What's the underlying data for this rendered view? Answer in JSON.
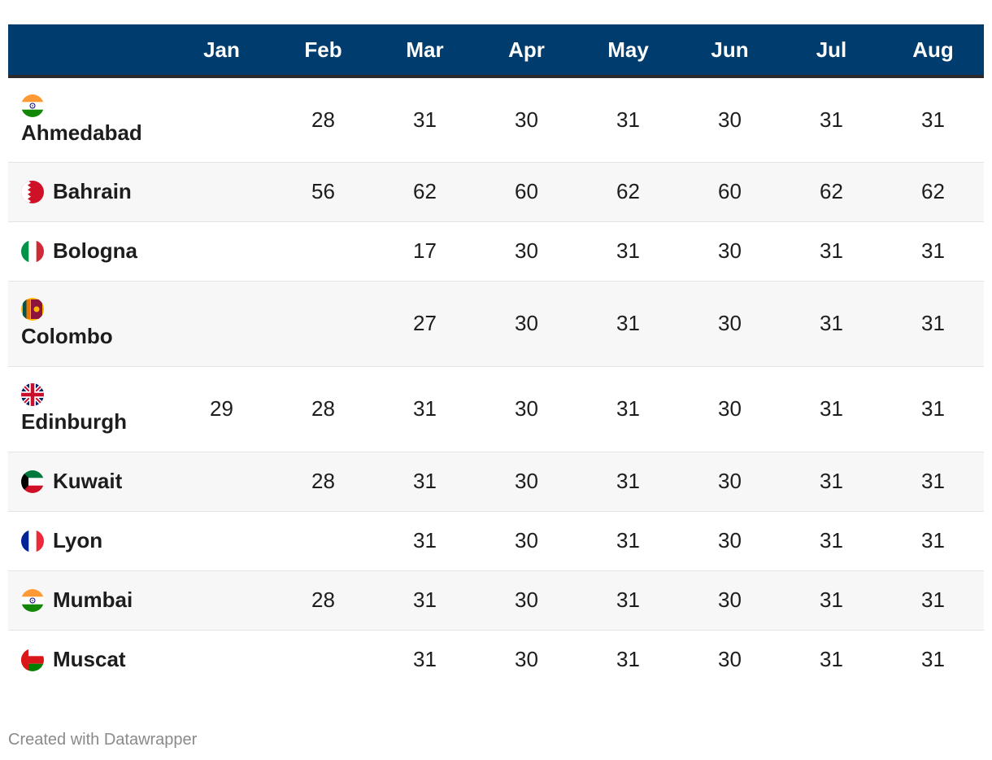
{
  "chart_data": {
    "type": "table",
    "columns": [
      "",
      "Jan",
      "Feb",
      "Mar",
      "Apr",
      "May",
      "Jun",
      "Jul",
      "Aug"
    ],
    "rows": [
      {
        "city": "Ahmedabad",
        "flag": "india-flag-icon",
        "values": [
          "",
          "28",
          "31",
          "30",
          "31",
          "30",
          "31",
          "31"
        ]
      },
      {
        "city": "Bahrain",
        "flag": "bahrain-flag-icon",
        "values": [
          "",
          "56",
          "62",
          "60",
          "62",
          "60",
          "62",
          "62"
        ]
      },
      {
        "city": "Bologna",
        "flag": "italy-flag-icon",
        "values": [
          "",
          "",
          "17",
          "30",
          "31",
          "30",
          "31",
          "31"
        ]
      },
      {
        "city": "Colombo",
        "flag": "sri-lanka-flag-icon",
        "values": [
          "",
          "",
          "27",
          "30",
          "31",
          "30",
          "31",
          "31"
        ]
      },
      {
        "city": "Edinburgh",
        "flag": "uk-flag-icon",
        "values": [
          "29",
          "28",
          "31",
          "30",
          "31",
          "30",
          "31",
          "31"
        ]
      },
      {
        "city": "Kuwait",
        "flag": "kuwait-flag-icon",
        "values": [
          "",
          "28",
          "31",
          "30",
          "31",
          "30",
          "31",
          "31"
        ]
      },
      {
        "city": "Lyon",
        "flag": "france-flag-icon",
        "values": [
          "",
          "",
          "31",
          "30",
          "31",
          "30",
          "31",
          "31"
        ]
      },
      {
        "city": "Mumbai",
        "flag": "india-flag-icon",
        "values": [
          "",
          "28",
          "31",
          "30",
          "31",
          "30",
          "31",
          "31"
        ]
      },
      {
        "city": "Muscat",
        "flag": "oman-flag-icon",
        "values": [
          "",
          "",
          "31",
          "30",
          "31",
          "30",
          "31",
          "31"
        ]
      }
    ]
  },
  "colors": {
    "header_bg": "#003d6e",
    "header_text": "#ffffff",
    "alt_row_bg": "#f7f7f7"
  },
  "footer": {
    "credit": "Created with Datawrapper"
  }
}
